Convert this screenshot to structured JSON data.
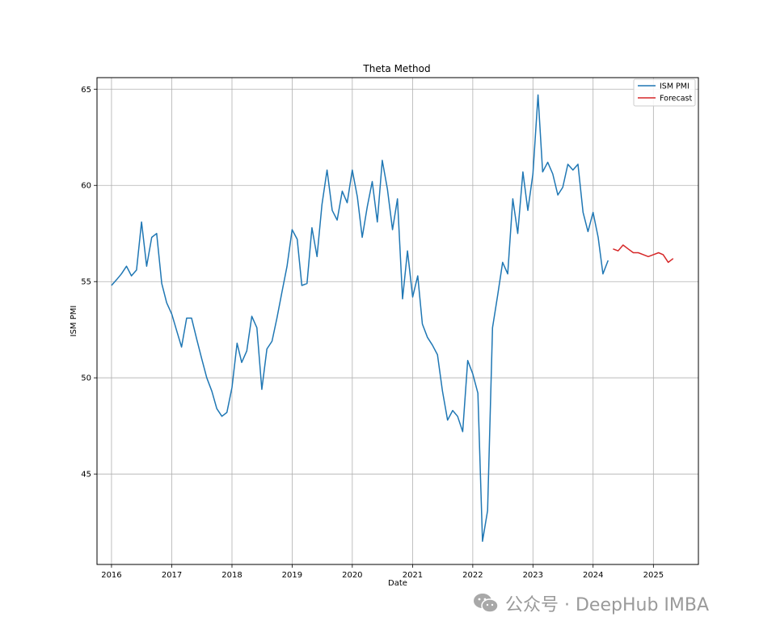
{
  "chart_data": {
    "type": "line",
    "title": "Theta Method",
    "xlabel": "Date",
    "ylabel": "ISM PMI",
    "x_range": [
      "2015-10-05",
      "2025-10-01"
    ],
    "ylim": [
      40.3,
      65.6
    ],
    "x_ticks": [
      {
        "label": "2016",
        "date": "2016-01-01"
      },
      {
        "label": "2017",
        "date": "2017-01-01"
      },
      {
        "label": "2018",
        "date": "2018-01-01"
      },
      {
        "label": "2019",
        "date": "2019-01-01"
      },
      {
        "label": "2020",
        "date": "2020-01-01"
      },
      {
        "label": "2021",
        "date": "2021-01-01"
      },
      {
        "label": "2022",
        "date": "2022-01-01"
      },
      {
        "label": "2023",
        "date": "2023-01-01"
      },
      {
        "label": "2024",
        "date": "2024-01-01"
      },
      {
        "label": "2025",
        "date": "2025-01-01"
      }
    ],
    "y_ticks": [
      {
        "label": "45",
        "value": 45
      },
      {
        "label": "50",
        "value": 50
      },
      {
        "label": "55",
        "value": 55
      },
      {
        "label": "60",
        "value": 60
      },
      {
        "label": "65",
        "value": 65
      }
    ],
    "grid": true,
    "legend": "top-right",
    "series": [
      {
        "name": "ISM PMI",
        "color": "#1f77b4",
        "points": [
          [
            "2016-01-01",
            54.8
          ],
          [
            "2016-02-01",
            55.1
          ],
          [
            "2016-03-01",
            55.4
          ],
          [
            "2016-04-01",
            55.8
          ],
          [
            "2016-05-01",
            55.3
          ],
          [
            "2016-06-01",
            55.6
          ],
          [
            "2016-07-01",
            58.1
          ],
          [
            "2016-08-01",
            55.8
          ],
          [
            "2016-09-01",
            57.3
          ],
          [
            "2016-10-01",
            57.5
          ],
          [
            "2016-11-01",
            54.9
          ],
          [
            "2016-12-01",
            53.9
          ],
          [
            "2017-01-01",
            53.3
          ],
          [
            "2017-02-01",
            52.4
          ],
          [
            "2017-03-01",
            51.6
          ],
          [
            "2017-04-01",
            53.1
          ],
          [
            "2017-05-01",
            53.1
          ],
          [
            "2017-06-01",
            52.0
          ],
          [
            "2017-07-01",
            51.0
          ],
          [
            "2017-08-01",
            50.0
          ],
          [
            "2017-09-01",
            49.3
          ],
          [
            "2017-10-01",
            48.4
          ],
          [
            "2017-11-01",
            48.0
          ],
          [
            "2017-12-01",
            48.2
          ],
          [
            "2018-01-01",
            49.5
          ],
          [
            "2018-02-01",
            51.8
          ],
          [
            "2018-03-01",
            50.8
          ],
          [
            "2018-04-01",
            51.4
          ],
          [
            "2018-05-01",
            53.2
          ],
          [
            "2018-06-01",
            52.6
          ],
          [
            "2018-07-01",
            49.4
          ],
          [
            "2018-08-01",
            51.5
          ],
          [
            "2018-09-01",
            51.9
          ],
          [
            "2018-10-01",
            53.1
          ],
          [
            "2018-11-01",
            54.5
          ],
          [
            "2018-12-01",
            55.8
          ],
          [
            "2019-01-01",
            57.7
          ],
          [
            "2019-02-01",
            57.2
          ],
          [
            "2019-03-01",
            54.8
          ],
          [
            "2019-04-01",
            54.9
          ],
          [
            "2019-05-01",
            57.8
          ],
          [
            "2019-06-01",
            56.3
          ],
          [
            "2019-07-01",
            59.0
          ],
          [
            "2019-08-01",
            60.8
          ],
          [
            "2019-09-01",
            58.7
          ],
          [
            "2019-10-01",
            58.2
          ],
          [
            "2019-11-01",
            59.7
          ],
          [
            "2019-12-01",
            59.1
          ],
          [
            "2020-01-01",
            60.8
          ],
          [
            "2020-02-01",
            59.4
          ],
          [
            "2020-03-01",
            57.3
          ],
          [
            "2020-04-01",
            58.9
          ],
          [
            "2020-05-01",
            60.2
          ],
          [
            "2020-06-01",
            58.1
          ],
          [
            "2020-07-01",
            61.3
          ],
          [
            "2020-08-01",
            59.8
          ],
          [
            "2020-09-01",
            57.7
          ],
          [
            "2020-10-01",
            59.3
          ],
          [
            "2020-11-01",
            54.1
          ],
          [
            "2020-12-01",
            56.6
          ],
          [
            "2021-01-01",
            54.2
          ],
          [
            "2021-02-01",
            55.3
          ],
          [
            "2021-03-01",
            52.8
          ],
          [
            "2021-04-01",
            52.1
          ],
          [
            "2021-05-01",
            51.7
          ],
          [
            "2021-06-01",
            51.2
          ],
          [
            "2021-07-01",
            49.3
          ],
          [
            "2021-08-01",
            47.8
          ],
          [
            "2021-09-01",
            48.3
          ],
          [
            "2021-10-01",
            48.0
          ],
          [
            "2021-11-01",
            47.2
          ],
          [
            "2021-12-01",
            50.9
          ],
          [
            "2022-01-01",
            50.2
          ],
          [
            "2022-02-01",
            49.2
          ],
          [
            "2022-03-01",
            41.5
          ],
          [
            "2022-04-01",
            43.1
          ],
          [
            "2022-05-01",
            52.6
          ],
          [
            "2022-06-01",
            54.3
          ],
          [
            "2022-07-01",
            56.0
          ],
          [
            "2022-08-01",
            55.4
          ],
          [
            "2022-09-01",
            59.3
          ],
          [
            "2022-10-01",
            57.5
          ],
          [
            "2022-11-01",
            60.7
          ],
          [
            "2022-12-01",
            58.7
          ],
          [
            "2023-01-01",
            60.6
          ],
          [
            "2023-02-01",
            64.7
          ],
          [
            "2023-03-01",
            60.7
          ],
          [
            "2023-04-01",
            61.2
          ],
          [
            "2023-05-01",
            60.6
          ],
          [
            "2023-06-01",
            59.5
          ],
          [
            "2023-07-01",
            59.9
          ],
          [
            "2023-08-01",
            61.1
          ],
          [
            "2023-09-01",
            60.8
          ],
          [
            "2023-10-01",
            61.1
          ],
          [
            "2023-11-01",
            58.6
          ],
          [
            "2023-12-01",
            57.6
          ],
          [
            "2024-01-01",
            58.6
          ],
          [
            "2024-02-01",
            57.3
          ],
          [
            "2024-03-01",
            55.4
          ],
          [
            "2024-04-01",
            56.1
          ]
        ]
      },
      {
        "name": "Forecast",
        "color": "#d62728",
        "points": [
          [
            "2024-05-01",
            56.7
          ],
          [
            "2024-06-01",
            56.6
          ],
          [
            "2024-07-01",
            56.9
          ],
          [
            "2024-08-01",
            56.7
          ],
          [
            "2024-09-01",
            56.5
          ],
          [
            "2024-10-01",
            56.5
          ],
          [
            "2024-11-01",
            56.4
          ],
          [
            "2024-12-01",
            56.3
          ],
          [
            "2025-01-01",
            56.4
          ],
          [
            "2025-02-01",
            56.5
          ],
          [
            "2025-03-01",
            56.4
          ],
          [
            "2025-04-01",
            56.0
          ],
          [
            "2025-05-01",
            56.2
          ]
        ]
      }
    ]
  },
  "watermark": {
    "text": "公众号 · DeepHub IMBA",
    "icon": "wechat-icon"
  }
}
